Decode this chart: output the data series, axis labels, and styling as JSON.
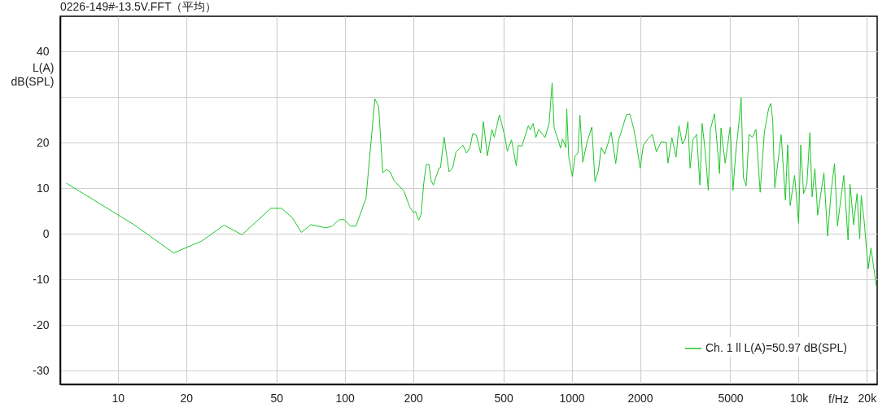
{
  "chart_data": {
    "type": "line",
    "title": "0226-149#-13.5V.FFT（平均）",
    "xlabel": "f/Hz",
    "ylabel": "L(A)\ndB(SPL)",
    "log": "x",
    "grid": true,
    "legend": "bottom right",
    "line_style": "solid",
    "xlim": [
      5.57,
      22200
    ],
    "ylim": [
      -33,
      47.7
    ],
    "xticks": [
      10,
      20,
      50,
      100,
      200,
      500,
      1000,
      2000,
      5000,
      {
        "value": 10000,
        "label": "10k"
      },
      {
        "value": 20000,
        "label": "20k"
      }
    ],
    "yticks": [
      -30,
      -20,
      -10,
      0,
      10,
      20,
      {
        "value": 30,
        "label": null
      },
      40
    ],
    "series": [
      {
        "name": "Ch. 1 ll L(A)=50.97 dB(SPL)",
        "color": "#1fc62b",
        "x": [
          5.93,
          11.78,
          17.6,
          23.4,
          29.4,
          35.2,
          47.2,
          52.5,
          58.8,
          64.4,
          70.8,
          82.7,
          88.1,
          94.5,
          99.5,
          106,
          112,
          124,
          135.7,
          141,
          147,
          152.6,
          158.4,
          164.8,
          182,
          193.7,
          201,
          205,
          211.6,
          217,
          223,
          228.6,
          235,
          240,
          245.5,
          260,
          264,
          274,
          288,
          299,
          309,
          322.5,
          332,
          344,
          356,
          366.5,
          380,
          397,
          408,
          425,
          445,
          456,
          480,
          508,
          520,
          543,
          570,
          581,
          603,
          644,
          657,
          676,
          695,
          715,
          763,
          795,
          820,
          837,
          873,
          893,
          911,
          943,
          951,
          970,
          1007,
          1035,
          1066,
          1087,
          1119,
          1170,
          1227,
          1267,
          1313,
          1349,
          1397,
          1445,
          1492,
          1564,
          1610,
          1680,
          1742,
          1803,
          1883,
          1936,
          2003,
          2068,
          2171,
          2266,
          2363,
          2481,
          2612,
          2657,
          2765,
          2885,
          2969,
          3080,
          3170,
          3252,
          3325,
          3423,
          3553,
          3675,
          3757,
          3867,
          4000,
          4081,
          4258,
          4383,
          4483,
          4550,
          4747,
          4994,
          5140,
          5288,
          5472,
          5583,
          5709,
          5876,
          6044,
          6256,
          6489,
          6772,
          7068,
          7380,
          7543,
          7692,
          7853,
          8100,
          8380,
          8748,
          8950,
          9180,
          9605,
          10000,
          10223,
          10520,
          10880,
          11215,
          11470,
          11800,
          12140,
          12930,
          13420,
          13920,
          14400,
          14830,
          15820,
          16520,
          16850,
          17480,
          18090,
          18600,
          18880,
          19420,
          20270,
          20840,
          22000
        ],
        "values": [
          11.1,
          2.0,
          -4.2,
          -1.6,
          1.9,
          -0.2,
          5.6,
          5.6,
          3.5,
          0.3,
          2.0,
          1.3,
          1.7,
          3.1,
          3.1,
          1.7,
          1.7,
          7.8,
          29.6,
          27.9,
          13.4,
          14.1,
          13.6,
          11.7,
          9.4,
          5.8,
          4.6,
          4.9,
          3.0,
          4.3,
          11.2,
          15.2,
          15.2,
          11.7,
          10.7,
          14.4,
          14.5,
          21.2,
          13.6,
          14.4,
          18.0,
          18.8,
          19.4,
          17.7,
          18.9,
          22.0,
          21.6,
          17.7,
          24.6,
          17.1,
          22.9,
          21.2,
          26.1,
          21.3,
          18.1,
          20.6,
          14.9,
          19.4,
          19.2,
          23.7,
          22.8,
          24.2,
          21.1,
          22.9,
          21.1,
          24.2,
          33.1,
          23.2,
          20.5,
          18.8,
          20.8,
          18.9,
          27.4,
          16.9,
          12.6,
          17.1,
          17.7,
          26.0,
          15.7,
          20.2,
          23.4,
          11.4,
          14.0,
          18.9,
          17.5,
          19.8,
          22.3,
          15.4,
          20.6,
          23.5,
          26.1,
          26.3,
          22.8,
          19.2,
          14.4,
          19.4,
          20.9,
          21.8,
          18.0,
          20.2,
          20.0,
          15.5,
          21.1,
          16.8,
          23.7,
          19.7,
          20.9,
          24.6,
          14.4,
          20.6,
          21.8,
          10.7,
          24.2,
          18.6,
          9.5,
          22.8,
          26.3,
          19.2,
          13.2,
          23.2,
          15.5,
          23.4,
          9.5,
          17.9,
          24.9,
          29.8,
          12.3,
          10.5,
          21.8,
          21.2,
          22.9,
          9.1,
          22.3,
          27.5,
          28.6,
          24.8,
          10.1,
          15.5,
          21.7,
          7.4,
          19.5,
          6.2,
          12.8,
          2.3,
          19.5,
          8.8,
          10.9,
          22.2,
          8.1,
          14.3,
          4.1,
          13.4,
          -0.5,
          9.4,
          15.4,
          1.7,
          12.8,
          -1.4,
          10.9,
          2.0,
          8.8,
          -1.1,
          8.4,
          3.2,
          -7.7,
          -3.1,
          -11.4
        ]
      }
    ]
  }
}
